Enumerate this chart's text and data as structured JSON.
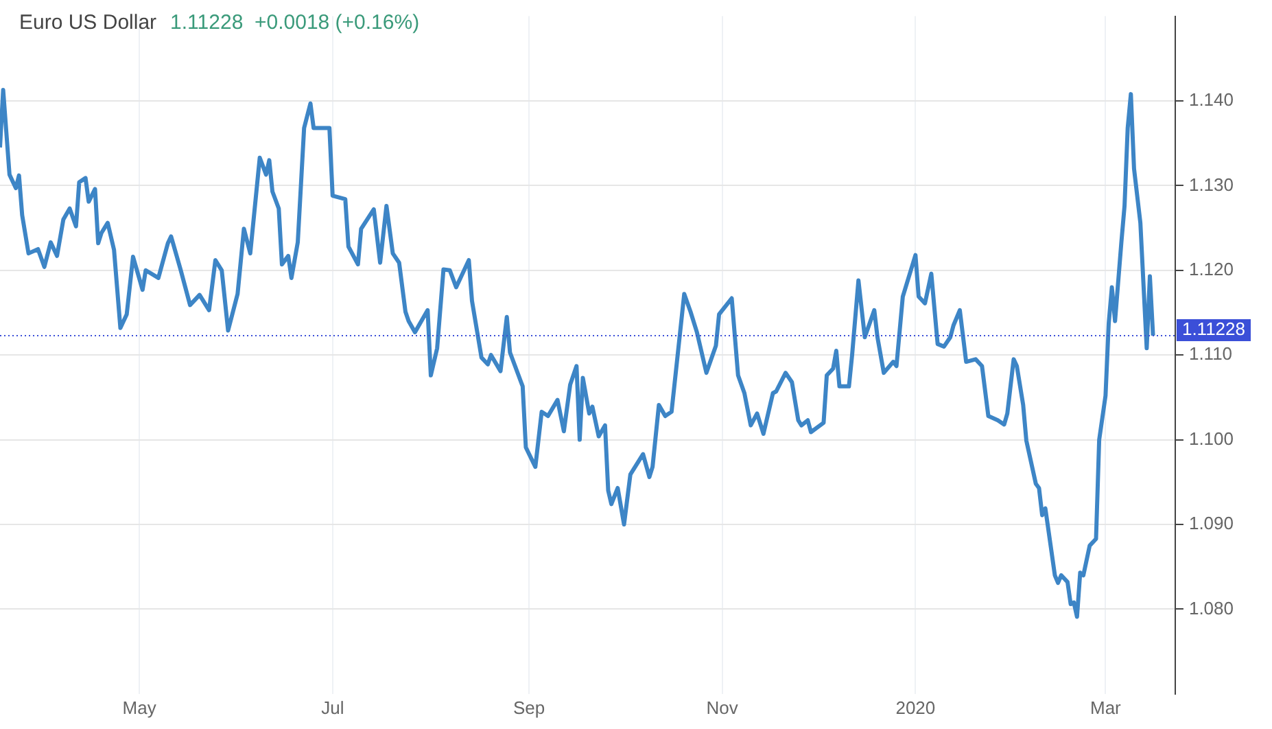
{
  "chart_data": {
    "type": "line",
    "title": "Euro US Dollar",
    "subtitle": "1.11228  +0.0018 (+0.16%)",
    "x": [
      "2019-03-18",
      "2019-03-19",
      "2019-03-21",
      "2019-03-23",
      "2019-03-24",
      "2019-03-25",
      "2019-03-27",
      "2019-03-30",
      "2019-04-01",
      "2019-04-03",
      "2019-04-05",
      "2019-04-07",
      "2019-04-09",
      "2019-04-11",
      "2019-04-12",
      "2019-04-14",
      "2019-04-15",
      "2019-04-17",
      "2019-04-18",
      "2019-04-19",
      "2019-04-21",
      "2019-04-23",
      "2019-04-25",
      "2019-04-27",
      "2019-04-29",
      "2019-05-02",
      "2019-05-03",
      "2019-05-07",
      "2019-05-10",
      "2019-05-11",
      "2019-05-14",
      "2019-05-17",
      "2019-05-20",
      "2019-05-23",
      "2019-05-25",
      "2019-05-27",
      "2019-05-29",
      "2019-06-01",
      "2019-06-03",
      "2019-06-05",
      "2019-06-08",
      "2019-06-10",
      "2019-06-11",
      "2019-06-12",
      "2019-06-14",
      "2019-06-15",
      "2019-06-17",
      "2019-06-18",
      "2019-06-20",
      "2019-06-22",
      "2019-06-24",
      "2019-06-25",
      "2019-06-30",
      "2019-07-01",
      "2019-07-05",
      "2019-07-06",
      "2019-07-09",
      "2019-07-10",
      "2019-07-14",
      "2019-07-16",
      "2019-07-18",
      "2019-07-20",
      "2019-07-22",
      "2019-07-24",
      "2019-07-25",
      "2019-07-27",
      "2019-07-31",
      "2019-08-01",
      "2019-08-03",
      "2019-08-05",
      "2019-08-07",
      "2019-08-09",
      "2019-08-13",
      "2019-08-14",
      "2019-08-17",
      "2019-08-19",
      "2019-08-20",
      "2019-08-23",
      "2019-08-25",
      "2019-08-26",
      "2019-08-30",
      "2019-08-31",
      "2019-09-03",
      "2019-09-05",
      "2019-09-07",
      "2019-09-10",
      "2019-09-12",
      "2019-09-14",
      "2019-09-16",
      "2019-09-17",
      "2019-09-18",
      "2019-09-20",
      "2019-09-21",
      "2019-09-23",
      "2019-09-25",
      "2019-09-26",
      "2019-09-27",
      "2019-09-29",
      "2019-10-01",
      "2019-10-03",
      "2019-10-07",
      "2019-10-09",
      "2019-10-10",
      "2019-10-12",
      "2019-10-14",
      "2019-10-16",
      "2019-10-20",
      "2019-10-22",
      "2019-10-24",
      "2019-10-27",
      "2019-10-30",
      "2019-10-31",
      "2019-11-04",
      "2019-11-06",
      "2019-11-08",
      "2019-11-10",
      "2019-11-12",
      "2019-11-14",
      "2019-11-17",
      "2019-11-18",
      "2019-11-21",
      "2019-11-23",
      "2019-11-25",
      "2019-11-26",
      "2019-11-28",
      "2019-11-29",
      "2019-12-03",
      "2019-12-04",
      "2019-12-06",
      "2019-12-07",
      "2019-12-08",
      "2019-12-11",
      "2019-12-12",
      "2019-12-14",
      "2019-12-16",
      "2019-12-19",
      "2019-12-20",
      "2019-12-22",
      "2019-12-25",
      "2019-12-26",
      "2019-12-28",
      "2020-01-01",
      "2020-01-02",
      "2020-01-04",
      "2020-01-06",
      "2020-01-08",
      "2020-01-10",
      "2020-01-12",
      "2020-01-13",
      "2020-01-15",
      "2020-01-17",
      "2020-01-20",
      "2020-01-22",
      "2020-01-24",
      "2020-01-27",
      "2020-01-29",
      "2020-01-30",
      "2020-02-01",
      "2020-02-02",
      "2020-02-04",
      "2020-02-05",
      "2020-02-08",
      "2020-02-09",
      "2020-02-10",
      "2020-02-11",
      "2020-02-14",
      "2020-02-15",
      "2020-02-16",
      "2020-02-18",
      "2020-02-19",
      "2020-02-20",
      "2020-02-21",
      "2020-02-22",
      "2020-02-23",
      "2020-02-25",
      "2020-02-27",
      "2020-02-28",
      "2020-03-01",
      "2020-03-02",
      "2020-03-03",
      "2020-03-04",
      "2020-03-06",
      "2020-03-07",
      "2020-03-08",
      "2020-03-09",
      "2020-03-10",
      "2020-03-12",
      "2020-03-14",
      "2020-03-15",
      "2020-03-16"
    ],
    "series": [
      {
        "color": "#3d85c6",
        "values": [
          1.1345,
          1.1413,
          1.1313,
          1.1297,
          1.1312,
          1.1265,
          1.122,
          1.1225,
          1.1204,
          1.1233,
          1.1217,
          1.126,
          1.1273,
          1.1252,
          1.1304,
          1.1309,
          1.1281,
          1.1296,
          1.1232,
          1.1244,
          1.1256,
          1.1224,
          1.1132,
          1.1148,
          1.1216,
          1.1177,
          1.12,
          1.1191,
          1.1232,
          1.124,
          1.1201,
          1.1159,
          1.1171,
          1.1153,
          1.1212,
          1.12,
          1.1129,
          1.1172,
          1.1249,
          1.122,
          1.1333,
          1.1313,
          1.133,
          1.1293,
          1.1273,
          1.1207,
          1.1217,
          1.1191,
          1.1233,
          1.1368,
          1.1397,
          1.1368,
          1.1368,
          1.1288,
          1.1284,
          1.1228,
          1.1207,
          1.1249,
          1.1272,
          1.1209,
          1.1276,
          1.122,
          1.1209,
          1.1151,
          1.114,
          1.1127,
          1.1153,
          1.1076,
          1.1108,
          1.1201,
          1.12,
          1.118,
          1.1212,
          1.1164,
          1.1097,
          1.1089,
          1.11,
          1.1081,
          1.1145,
          1.1103,
          1.1063,
          1.0991,
          1.0968,
          1.1033,
          1.1028,
          1.1047,
          1.101,
          1.1065,
          1.1087,
          1.1,
          1.1073,
          1.1031,
          1.1039,
          1.1004,
          1.1017,
          1.094,
          1.0924,
          1.0943,
          1.09,
          1.0959,
          1.0983,
          1.0956,
          1.0968,
          1.1041,
          1.1028,
          1.1033,
          1.1172,
          1.1151,
          1.1127,
          1.1079,
          1.1111,
          1.1148,
          1.1167,
          1.1076,
          1.1055,
          1.1017,
          1.1031,
          1.1007,
          1.1055,
          1.1057,
          1.1079,
          1.1068,
          1.1023,
          1.1017,
          1.1023,
          1.1009,
          1.102,
          1.1076,
          1.1084,
          1.1105,
          1.1063,
          1.1063,
          1.11,
          1.1188,
          1.1121,
          1.1153,
          1.1121,
          1.1079,
          1.1092,
          1.1087,
          1.1169,
          1.1218,
          1.1169,
          1.1161,
          1.1196,
          1.1113,
          1.111,
          1.1121,
          1.1135,
          1.1153,
          1.1092,
          1.1095,
          1.1087,
          1.1028,
          1.1023,
          1.1018,
          1.1031,
          1.1095,
          1.1087,
          1.1041,
          1.0999,
          1.0948,
          1.0943,
          1.0911,
          1.0919,
          1.084,
          1.0831,
          1.084,
          1.0832,
          1.0806,
          1.0808,
          1.0791,
          1.0843,
          1.084,
          1.0875,
          1.0883,
          1.1,
          1.1052,
          1.1137,
          1.118,
          1.114,
          1.1233,
          1.1276,
          1.1368,
          1.1408,
          1.132,
          1.1256,
          1.1108,
          1.1193,
          1.1123
        ]
      }
    ],
    "xlim": [
      "2019-03-18",
      "2020-03-23"
    ],
    "xticks": [
      {
        "value": "2019-05-01",
        "label": "May"
      },
      {
        "value": "2019-07-01",
        "label": "Jul"
      },
      {
        "value": "2019-09-01",
        "label": "Sep"
      },
      {
        "value": "2019-11-01",
        "label": "Nov"
      },
      {
        "value": "2020-01-01",
        "label": "2020"
      },
      {
        "value": "2020-03-01",
        "label": "Mar"
      }
    ],
    "ylim": [
      1.07,
      1.15
    ],
    "yticks": [
      {
        "value": 1.08,
        "label": "1.080"
      },
      {
        "value": 1.09,
        "label": "1.090"
      },
      {
        "value": 1.1,
        "label": "1.100"
      },
      {
        "value": 1.11,
        "label": "1.110"
      },
      {
        "value": 1.12,
        "label": "1.120"
      },
      {
        "value": 1.13,
        "label": "1.130"
      },
      {
        "value": 1.14,
        "label": "1.140"
      }
    ],
    "ref_lines": [
      {
        "axis": "y",
        "value": 1.11228,
        "label": "1.11228",
        "color": "#3b4fd8",
        "line_style": "dotted"
      }
    ],
    "grid": true,
    "legend": false,
    "marker": "none",
    "line_style": "solid"
  }
}
